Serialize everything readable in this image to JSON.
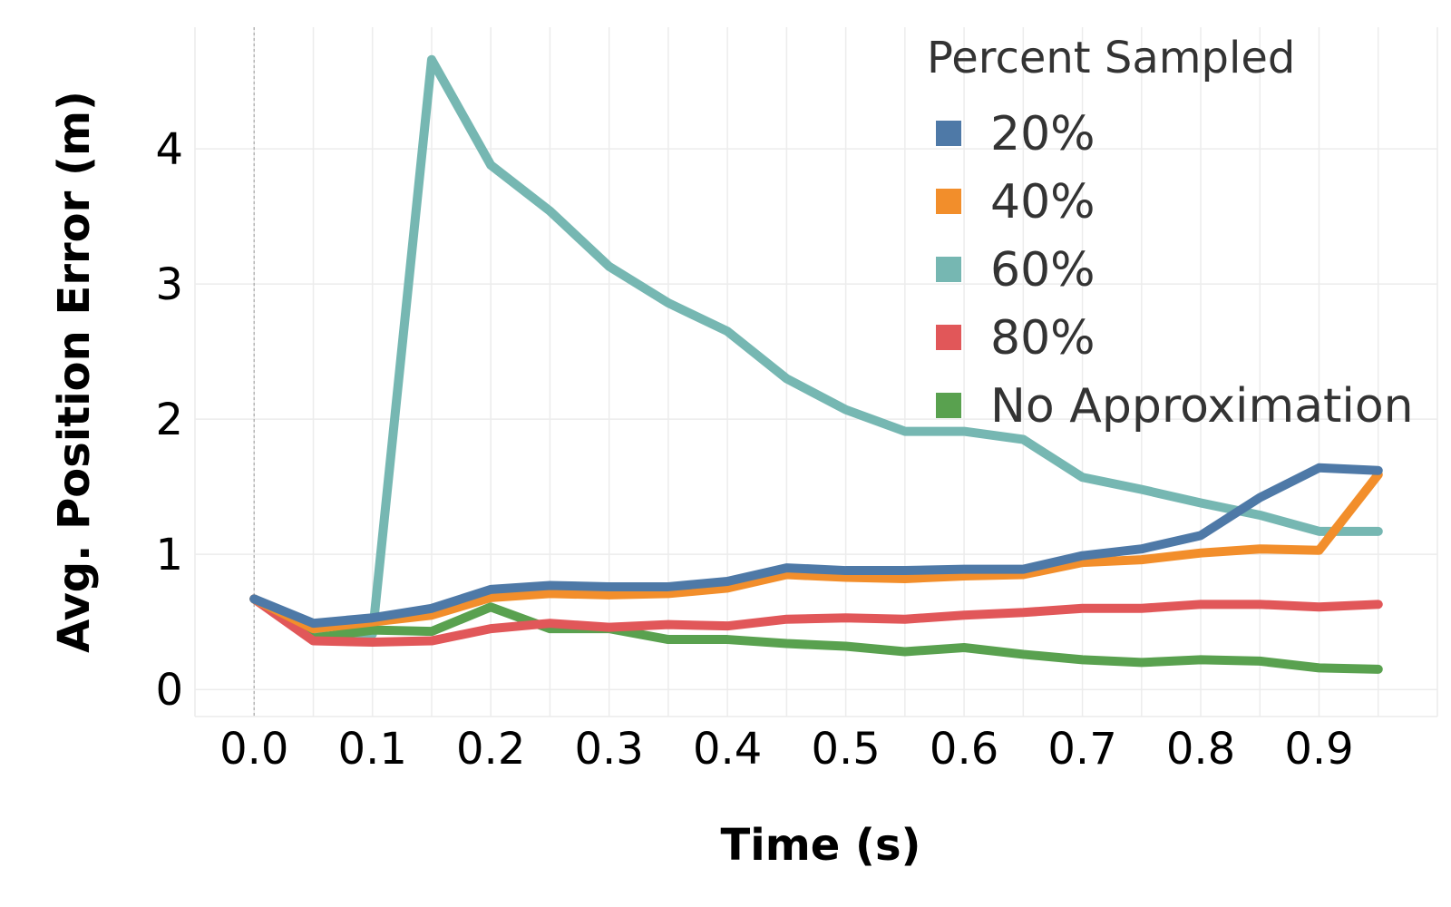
{
  "chart_data": {
    "type": "line",
    "xlabel": "Time (s)",
    "ylabel": "Avg. Position Error (m)",
    "xlim": [
      -0.05,
      1.0
    ],
    "ylim": [
      -0.2,
      4.9
    ],
    "grid": true,
    "x_ticks": [
      "0.0",
      "0.1",
      "0.2",
      "0.3",
      "0.4",
      "0.5",
      "0.6",
      "0.7",
      "0.8",
      "0.9"
    ],
    "y_ticks": [
      "0",
      "1",
      "2",
      "3",
      "4"
    ],
    "x": [
      0.0,
      0.05,
      0.1,
      0.15,
      0.2,
      0.25,
      0.3,
      0.35,
      0.4,
      0.45,
      0.5,
      0.55,
      0.6,
      0.65,
      0.7,
      0.75,
      0.8,
      0.85,
      0.9,
      0.95
    ],
    "legend": {
      "title": "Percent Sampled",
      "placement": "top-right"
    },
    "series": [
      {
        "name": "20%",
        "color": "#4e79a7",
        "values": [
          0.67,
          0.49,
          0.53,
          0.6,
          0.74,
          0.77,
          0.76,
          0.76,
          0.8,
          0.9,
          0.88,
          0.88,
          0.89,
          0.89,
          0.99,
          1.04,
          1.14,
          1.42,
          1.64,
          1.62
        ]
      },
      {
        "name": "40%",
        "color": "#f28e2b",
        "values": [
          0.67,
          0.45,
          0.5,
          0.55,
          0.68,
          0.71,
          0.7,
          0.71,
          0.75,
          0.85,
          0.83,
          0.82,
          0.84,
          0.85,
          0.94,
          0.96,
          1.01,
          1.04,
          1.03,
          1.59
        ]
      },
      {
        "name": "60%",
        "color": "#76b7b2",
        "values": [
          0.67,
          0.39,
          0.41,
          4.66,
          3.88,
          3.54,
          3.13,
          2.86,
          2.65,
          2.3,
          2.07,
          1.91,
          1.91,
          1.85,
          1.57,
          1.48,
          1.38,
          1.29,
          1.17,
          1.17
        ]
      },
      {
        "name": "80%",
        "color": "#e15759",
        "values": [
          0.67,
          0.36,
          0.35,
          0.36,
          0.45,
          0.49,
          0.46,
          0.48,
          0.47,
          0.52,
          0.53,
          0.52,
          0.55,
          0.57,
          0.6,
          0.6,
          0.63,
          0.63,
          0.61,
          0.63
        ]
      },
      {
        "name": "No Approximation",
        "color": "#59a14f",
        "values": [
          0.67,
          0.38,
          0.44,
          0.43,
          0.61,
          0.45,
          0.45,
          0.37,
          0.37,
          0.34,
          0.32,
          0.28,
          0.31,
          0.26,
          0.22,
          0.2,
          0.22,
          0.21,
          0.16,
          0.15
        ]
      }
    ]
  }
}
